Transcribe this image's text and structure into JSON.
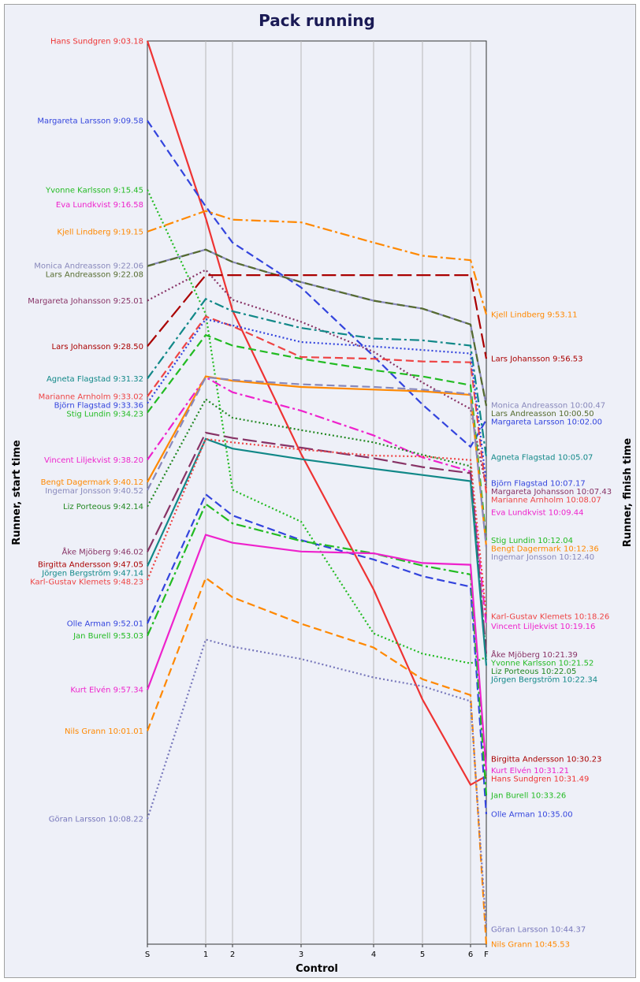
{
  "chart_data": {
    "type": "line",
    "title": "Pack running",
    "xlabel": "Control",
    "ylabel_left": "Runner, start time",
    "ylabel_right": "Runner, finish time",
    "x_ticks": [
      "S",
      "1",
      "2",
      "3",
      "4",
      "5",
      "6",
      "F"
    ],
    "grid": true,
    "series": [
      {
        "start_label": "Hans Sundgren 9:03.18",
        "finish_label": "Hans Sundgren 10:31.49",
        "color": "#ee3333",
        "dash": "solid",
        "start": "9:03.18",
        "finish": "10:31.49",
        "points": [
          [
            0,
            0
          ],
          [
            1,
            20.1
          ],
          [
            2,
            30.6
          ],
          [
            3,
            46.9
          ],
          [
            4,
            62.3
          ],
          [
            5,
            74.8
          ],
          [
            6,
            84.5
          ],
          [
            7,
            88.5
          ]
        ]
      },
      {
        "start_label": "Margareta Larsson 9:09.58",
        "finish_label": "Margareta Larsson 10:02.00",
        "color": "#3344dd",
        "dash": "dashed",
        "start": "9:09.58",
        "finish": "10:02.00",
        "points": [
          [
            0,
            6.7
          ],
          [
            1,
            18.8
          ],
          [
            2,
            22.9
          ],
          [
            3,
            28.0
          ],
          [
            4,
            35.8
          ],
          [
            5,
            41.3
          ],
          [
            6,
            46.1
          ],
          [
            7,
            58.7
          ]
        ]
      },
      {
        "start_label": "Yvonne Karlsson 9:15.45",
        "finish_label": "Yvonne Karlsson 10:21.52",
        "color": "#22bb22",
        "dash": "dotted",
        "start": "9:15.45",
        "finish": "10:21.52",
        "points": [
          [
            0,
            12.5
          ],
          [
            1,
            31.0
          ],
          [
            2,
            51.0
          ],
          [
            3,
            54.6
          ],
          [
            4,
            67.3
          ],
          [
            5,
            69.6
          ],
          [
            6,
            70.7
          ],
          [
            7,
            78.6
          ]
        ]
      },
      {
        "start_label": "Eva Lundkvist 9:16.58",
        "finish_label": "Eva Lundkvist 10:09.44",
        "color": "#ee22cc",
        "dash": "solid",
        "start": "9:16.58",
        "finish": "10:09.44",
        "points": []
      },
      {
        "start_label": "Kjell Lindberg 9:19.15",
        "finish_label": "Kjell Lindberg 9:53.11",
        "color": "#ff8800",
        "dash": "dashdot",
        "start": "9:19.15",
        "finish": "9:53.11",
        "points": [
          [
            0,
            16.0
          ],
          [
            1,
            19.3
          ],
          [
            2,
            20.3
          ],
          [
            3,
            20.6
          ],
          [
            4,
            22.9
          ],
          [
            5,
            24.4
          ],
          [
            6,
            24.9
          ],
          [
            7,
            49.9
          ]
        ]
      },
      {
        "start_label": "Monica Andreasson 9:22.06",
        "finish_label": "Monica Andreasson 10:00.47",
        "color": "#8888bb",
        "dash": "solid",
        "start": "9:22.06",
        "finish": "10:00.47",
        "points": [
          [
            0,
            18.8
          ],
          [
            1,
            23.7
          ],
          [
            2,
            25.1
          ],
          [
            3,
            27.4
          ],
          [
            4,
            29.5
          ],
          [
            5,
            30.4
          ],
          [
            6,
            32.2
          ],
          [
            7,
            57.5
          ]
        ]
      },
      {
        "start_label": "Lars Andreasson 9:22.08",
        "finish_label": "Lars Andreasson 10:00.50",
        "color": "#556b2f",
        "dash": "dashed",
        "start": "9:22.08",
        "finish": "10:00.50",
        "points": [
          [
            0,
            18.8
          ],
          [
            1,
            23.7
          ],
          [
            2,
            25.1
          ],
          [
            3,
            27.4
          ],
          [
            4,
            29.5
          ],
          [
            5,
            30.4
          ],
          [
            6,
            32.2
          ],
          [
            7,
            57.5
          ]
        ]
      },
      {
        "start_label": "Margareta Johansson 9:25.01",
        "finish_label": "Margareta Johansson 10:07.43",
        "color": "#883366",
        "dash": "dotted",
        "start": "9:25.01",
        "finish": "10:07.43",
        "points": [
          [
            0,
            21.7
          ],
          [
            1,
            26.0
          ],
          [
            2,
            29.4
          ],
          [
            3,
            31.9
          ],
          [
            4,
            35.3
          ],
          [
            5,
            38.8
          ],
          [
            6,
            41.8
          ],
          [
            7,
            64.4
          ]
        ]
      },
      {
        "start_label": "Lars Johansson 9:28.50",
        "finish_label": "Lars Johansson 9:56.53",
        "color": "#aa0000",
        "dash": "longdash",
        "start": "9:28.50",
        "finish": "9:56.53",
        "points": [
          [
            0,
            25.5
          ],
          [
            1,
            26.6
          ],
          [
            2,
            26.6
          ],
          [
            3,
            26.6
          ],
          [
            4,
            26.6
          ],
          [
            5,
            26.6
          ],
          [
            6,
            26.6
          ],
          [
            7,
            53.6
          ]
        ]
      },
      {
        "start_label": "Agneta Flagstad 9:31.32",
        "finish_label": "Agneta Flagstad 10:05.07",
        "color": "#118888",
        "dash": "dashdot",
        "start": "9:31.32",
        "finish": "10:05.07",
        "points": [
          [
            0,
            28.2
          ],
          [
            1,
            29.3
          ],
          [
            2,
            30.7
          ],
          [
            3,
            32.6
          ],
          [
            4,
            33.8
          ],
          [
            5,
            34.0
          ],
          [
            6,
            34.6
          ],
          [
            7,
            61.8
          ]
        ]
      },
      {
        "start_label": "Marianne Arnholm 9:33.02",
        "finish_label": "Marianne Arnholm 10:08.07",
        "color": "#ee4444",
        "dash": "dashed",
        "start": "9:33.02",
        "finish": "10:08.07",
        "points": [
          [
            0,
            29.7
          ],
          [
            1,
            31.3
          ],
          [
            2,
            32.4
          ],
          [
            3,
            35.9
          ],
          [
            4,
            36.1
          ],
          [
            5,
            36.4
          ],
          [
            6,
            36.5
          ],
          [
            7,
            64.8
          ]
        ]
      },
      {
        "start_label": "Björn Flagstad 9:33.36",
        "finish_label": "Björn Flagstad 10:07.17",
        "color": "#3344dd",
        "dash": "dotted",
        "start": "9:33.36",
        "finish": "10:07.17",
        "points": [
          [
            0,
            30.3
          ],
          [
            1,
            31.6
          ],
          [
            2,
            32.3
          ],
          [
            3,
            34.2
          ],
          [
            4,
            34.7
          ],
          [
            5,
            35.1
          ],
          [
            6,
            35.5
          ],
          [
            7,
            64.0
          ]
        ]
      },
      {
        "start_label": "Stig Lundin 9:34.23",
        "finish_label": "Stig Lundin 10:12.04",
        "color": "#22bb22",
        "dash": "dashed",
        "start": "9:34.23",
        "finish": "10:12.04",
        "points": [
          [
            0,
            31.1
          ],
          [
            1,
            33.4
          ],
          [
            2,
            34.6
          ],
          [
            3,
            36.1
          ],
          [
            4,
            37.4
          ],
          [
            5,
            38.1
          ],
          [
            6,
            39.1
          ],
          [
            7,
            68.8
          ]
        ]
      },
      {
        "start_label": "Vincent Liljekvist 9:38.20",
        "finish_label": "Vincent Liljekvist 10:19.16",
        "color": "#ee22cc",
        "dash": "dashdot",
        "start": "9:38.20",
        "finish": "10:19.16",
        "points": [
          [
            0,
            35.0
          ],
          [
            1,
            38.2
          ],
          [
            2,
            39.9
          ],
          [
            3,
            42.0
          ],
          [
            4,
            44.8
          ],
          [
            5,
            47.3
          ],
          [
            6,
            48.9
          ],
          [
            7,
            76.0
          ]
        ]
      },
      {
        "start_label": "Bengt Dagermark 9:40.12",
        "finish_label": "Bengt Dagermark 10:12.36",
        "color": "#ff8800",
        "dash": "solid",
        "start": "9:40.12",
        "finish": "10:12.36",
        "points": [
          [
            0,
            36.9
          ],
          [
            1,
            38.1
          ],
          [
            2,
            38.6
          ],
          [
            3,
            39.3
          ],
          [
            4,
            39.6
          ],
          [
            5,
            39.8
          ],
          [
            6,
            40.2
          ],
          [
            7,
            69.3
          ]
        ]
      },
      {
        "start_label": "Ingemar Jonsson 9:40.52",
        "finish_label": "Ingemar Jonsson 10:12.40",
        "color": "#8888bb",
        "dash": "dashed",
        "start": "9:40.52",
        "finish": "10:12.40",
        "points": [
          [
            0,
            37.6
          ],
          [
            1,
            38.2
          ],
          [
            2,
            38.5
          ],
          [
            3,
            39.0
          ],
          [
            4,
            39.3
          ],
          [
            5,
            39.6
          ],
          [
            6,
            40.1
          ],
          [
            7,
            69.4
          ]
        ]
      },
      {
        "start_label": "Liz Porteous 9:42.14",
        "finish_label": "Liz Porteous 10:22.05",
        "color": "#228822",
        "dash": "dotted",
        "start": "9:42.14",
        "finish": "10:22.05",
        "points": [
          [
            0,
            38.9
          ],
          [
            1,
            40.7
          ],
          [
            2,
            42.8
          ],
          [
            3,
            44.2
          ],
          [
            4,
            45.6
          ],
          [
            5,
            47.0
          ],
          [
            6,
            48.3
          ],
          [
            7,
            78.8
          ]
        ]
      },
      {
        "start_label": "Åke Mjöberg 9:46.02",
        "finish_label": "Åke Mjöberg 10:21.39",
        "color": "#883366",
        "dash": "longdash",
        "start": "9:46.02",
        "finish": "10:21.39",
        "points": [
          [
            0,
            42.7
          ],
          [
            1,
            44.5
          ],
          [
            2,
            45.1
          ],
          [
            3,
            46.2
          ],
          [
            4,
            47.4
          ],
          [
            5,
            48.4
          ],
          [
            6,
            49.1
          ],
          [
            7,
            78.3
          ]
        ]
      },
      {
        "start_label": "Birgitta Andersson 9:47.05",
        "finish_label": "Birgitta Andersson 10:30.23",
        "color": "#aa0000",
        "dash": "solid",
        "start": "9:47.05",
        "finish": "10:30.23",
        "points": []
      },
      {
        "start_label": "Jörgen Bergström 9:47.14",
        "finish_label": "Jörgen Bergström 10:22.34",
        "color": "#118888",
        "dash": "solid",
        "start": "9:47.14",
        "finish": "10:22.34",
        "points": [
          [
            0,
            43.9
          ],
          [
            1,
            45.2
          ],
          [
            2,
            46.3
          ],
          [
            3,
            47.5
          ],
          [
            4,
            48.6
          ],
          [
            5,
            49.3
          ],
          [
            6,
            50.0
          ],
          [
            7,
            79.3
          ]
        ]
      },
      {
        "start_label": "Karl-Gustav Klemets 9:48.23",
        "finish_label": "Karl-Gustav Klemets 10:18.26",
        "color": "#ee4444",
        "dash": "dotted",
        "start": "9:48.23",
        "finish": "10:18.26",
        "points": [
          [
            0,
            45.1
          ],
          [
            1,
            45.2
          ],
          [
            2,
            45.6
          ],
          [
            3,
            46.4
          ],
          [
            4,
            47.1
          ],
          [
            5,
            47.2
          ],
          [
            6,
            47.6
          ],
          [
            7,
            75.1
          ]
        ]
      },
      {
        "start_label": "Olle Arman 9:52.01",
        "finish_label": "Olle Arman 10:35.00",
        "color": "#3344dd",
        "dash": "dashed",
        "start": "9:52.01",
        "finish": "10:35.00",
        "points": [
          [
            0,
            48.7
          ],
          [
            1,
            51.5
          ],
          [
            2,
            53.9
          ],
          [
            3,
            56.7
          ],
          [
            4,
            58.9
          ],
          [
            5,
            60.8
          ],
          [
            6,
            62.0
          ],
          [
            7,
            91.7
          ]
        ]
      },
      {
        "start_label": "Jan Burell 9:53.03",
        "finish_label": "Jan Burell 10:33.26",
        "color": "#22bb22",
        "dash": "dashdot",
        "start": "9:53.03",
        "finish": "10:33.26",
        "points": [
          [
            0,
            49.8
          ],
          [
            1,
            52.6
          ],
          [
            2,
            54.8
          ],
          [
            3,
            56.8
          ],
          [
            4,
            58.2
          ],
          [
            5,
            59.6
          ],
          [
            6,
            60.6
          ],
          [
            7,
            90.1
          ]
        ]
      },
      {
        "start_label": "Kurt Elvén 9:57.34",
        "finish_label": "Kurt Elvén 10:31.21",
        "color": "#ee22cc",
        "dash": "solid",
        "start": "9:57.34",
        "finish": "10:31.21",
        "points": [
          [
            0,
            54.2
          ],
          [
            1,
            56.1
          ],
          [
            2,
            57.0
          ],
          [
            3,
            58.0
          ],
          [
            4,
            58.2
          ],
          [
            5,
            59.3
          ],
          [
            6,
            59.5
          ],
          [
            7,
            88.0
          ]
        ]
      },
      {
        "start_label": "Nils Grann 10:01.01",
        "finish_label": "Nils Grann 10:45.53",
        "color": "#ff8800",
        "dash": "dashed",
        "start": "10:01.01",
        "finish": "10:45.53",
        "points": [
          [
            0,
            57.7
          ],
          [
            1,
            61.0
          ],
          [
            2,
            63.2
          ],
          [
            3,
            66.2
          ],
          [
            4,
            68.9
          ],
          [
            5,
            72.5
          ],
          [
            6,
            74.3
          ],
          [
            7,
            102.6
          ]
        ]
      },
      {
        "start_label": "Göran Larsson 10:08.22",
        "finish_label": "Göran Larsson 10:44.37",
        "color": "#7777bb",
        "dash": "dotted",
        "start": "10:08.22",
        "finish": "10:44.37",
        "points": [
          [
            0,
            65.1
          ],
          [
            1,
            68.0
          ],
          [
            2,
            68.8
          ],
          [
            3,
            70.2
          ],
          [
            4,
            72.3
          ],
          [
            5,
            73.3
          ],
          [
            6,
            75.0
          ],
          [
            7,
            101.3
          ]
        ]
      }
    ]
  }
}
